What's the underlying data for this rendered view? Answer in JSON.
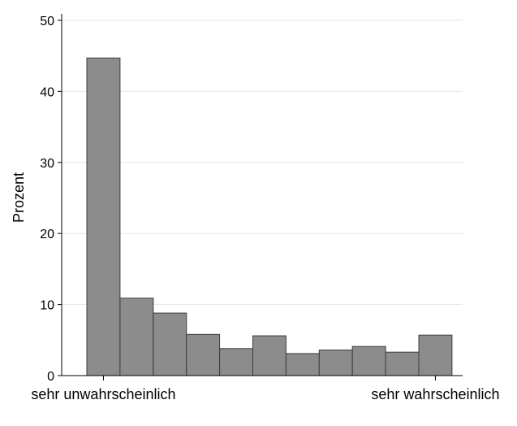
{
  "chart_data": {
    "type": "bar",
    "title": "",
    "xlabel": "",
    "ylabel": "Prozent",
    "ylim": [
      0,
      50
    ],
    "yticks": [
      0,
      10,
      20,
      30,
      40,
      50
    ],
    "grid": true,
    "bar_color": "#8c8c8c",
    "bar_edge_color": "#3c3c3c",
    "categories": [
      "0",
      "1",
      "2",
      "3",
      "4",
      "5",
      "6",
      "7",
      "8",
      "9",
      "10"
    ],
    "values": [
      44.7,
      10.9,
      8.8,
      5.8,
      3.8,
      5.6,
      3.1,
      3.6,
      4.1,
      3.3,
      5.7
    ],
    "x_tick_labels": [
      {
        "category": "0",
        "label": "sehr unwahrscheinlich"
      },
      {
        "category": "10",
        "label": "sehr wahrscheinlich"
      }
    ]
  }
}
